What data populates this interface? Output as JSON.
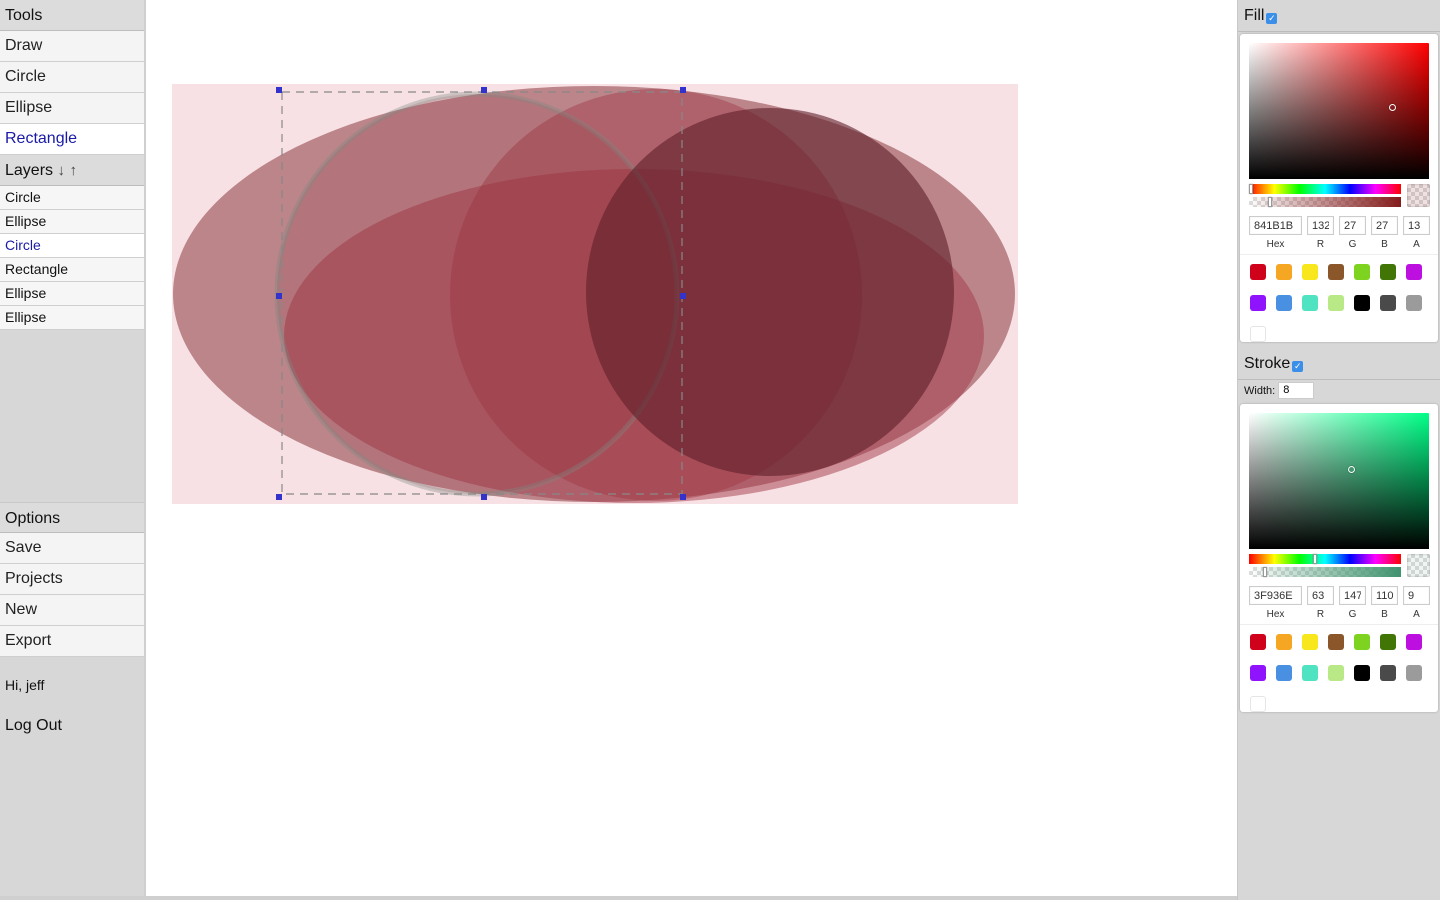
{
  "sidebar": {
    "tools_heading": "Tools",
    "tools": [
      {
        "label": "Draw",
        "active": false
      },
      {
        "label": "Circle",
        "active": false
      },
      {
        "label": "Ellipse",
        "active": false
      },
      {
        "label": "Rectangle",
        "active": true
      }
    ],
    "layers_heading": "Layers",
    "layer_down_icon": "↓",
    "layer_up_icon": "↑",
    "layers": [
      {
        "label": "Circle",
        "active": false
      },
      {
        "label": "Ellipse",
        "active": false
      },
      {
        "label": "Circle",
        "active": true
      },
      {
        "label": "Rectangle",
        "active": false
      },
      {
        "label": "Ellipse",
        "active": false
      },
      {
        "label": "Ellipse",
        "active": false
      }
    ],
    "options_heading": "Options",
    "actions": [
      "Save",
      "Projects",
      "New",
      "Export"
    ],
    "greeting": "Hi, jeff",
    "logout": "Log Out"
  },
  "fill": {
    "heading": "Fill",
    "enabled": true,
    "hue_color": "#ff0000",
    "hex": "841B1B",
    "r": "132",
    "g": "27",
    "b": "27",
    "a": "13",
    "labels": {
      "hex": "Hex",
      "r": "R",
      "g": "G",
      "b": "B",
      "a": "A"
    }
  },
  "stroke": {
    "heading": "Stroke",
    "enabled": true,
    "width_label": "Width:",
    "width_value": "8",
    "hue_color": "#00ff88",
    "hex": "3F936E",
    "r": "63",
    "g": "147",
    "b": "110",
    "a": "9",
    "labels": {
      "hex": "Hex",
      "r": "R",
      "g": "G",
      "b": "B",
      "a": "A"
    }
  },
  "swatch_colors": [
    "#D0021B",
    "#F5A623",
    "#F8E71C",
    "#8B572A",
    "#7ED321",
    "#417505",
    "#BD10E0",
    "#9013FE",
    "#4A90E2",
    "#50E3C2",
    "#B8E986",
    "#000000",
    "#4A4A4A",
    "#9B9B9B",
    "#FFFFFF"
  ],
  "icons": {
    "checkbox": "checkmark-icon",
    "layer_down": "arrow-down-icon",
    "layer_up": "arrow-up-icon"
  }
}
